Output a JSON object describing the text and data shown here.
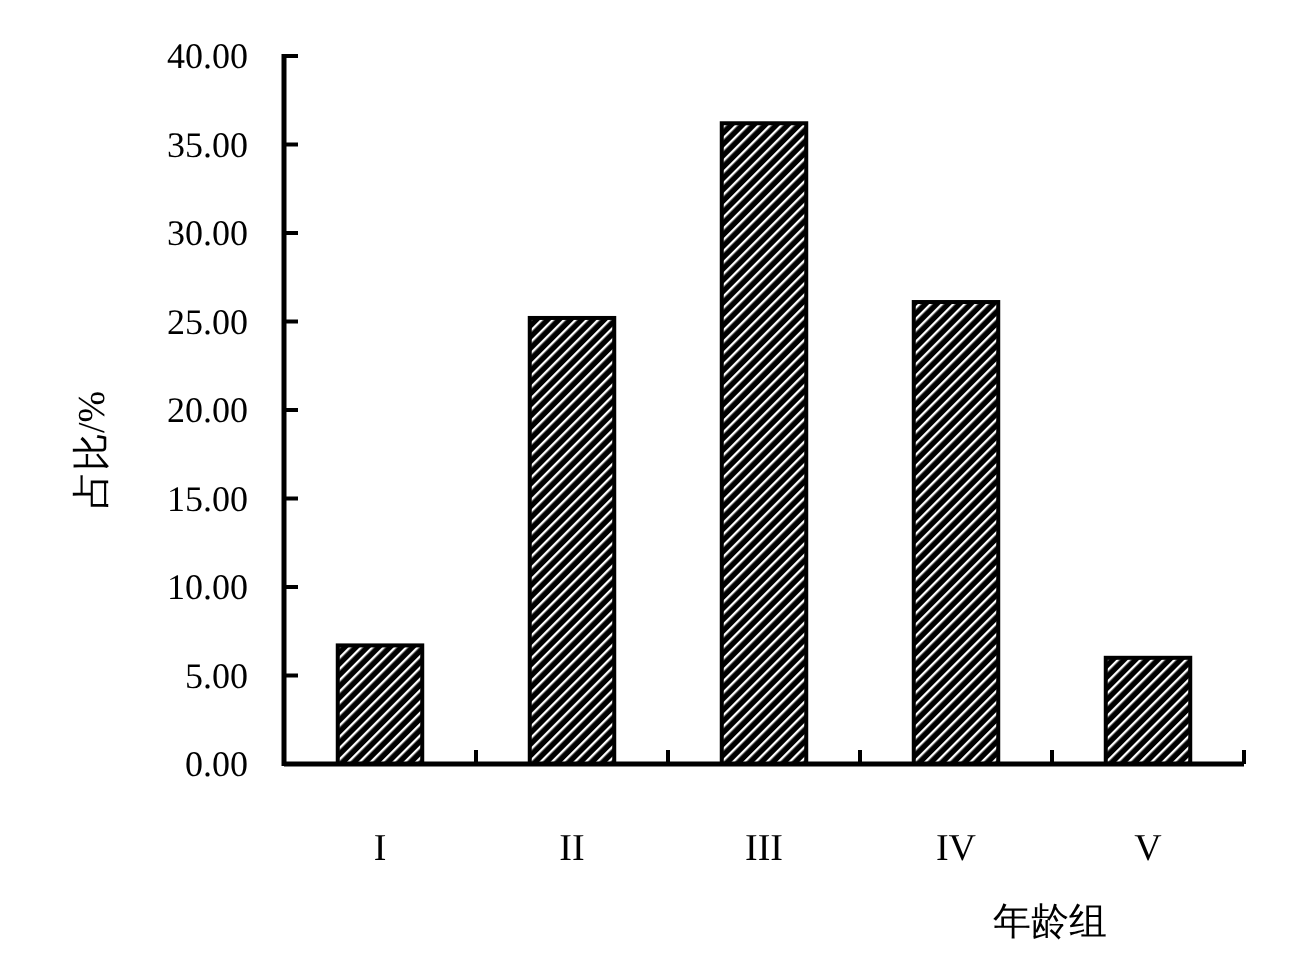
{
  "chart_data": {
    "type": "bar",
    "xlabel": "年龄组",
    "ylabel": "占比/%",
    "categories": [
      "I",
      "II",
      "III",
      "IV",
      "V"
    ],
    "values": [
      6.7,
      25.2,
      36.2,
      26.1,
      6.0
    ],
    "color": "#000000",
    "ylim": [
      0,
      40
    ],
    "yticks": [
      {
        "value": 0,
        "label": "0.00"
      },
      {
        "value": 5,
        "label": "5.00"
      },
      {
        "value": 10,
        "label": "10.00"
      },
      {
        "value": 15,
        "label": "15.00"
      },
      {
        "value": 20,
        "label": "20.00"
      },
      {
        "value": 25,
        "label": "25.00"
      },
      {
        "value": 30,
        "label": "30.00"
      },
      {
        "value": 35,
        "label": "35.00"
      },
      {
        "value": 40,
        "label": "40.00"
      }
    ],
    "grid": false
  }
}
